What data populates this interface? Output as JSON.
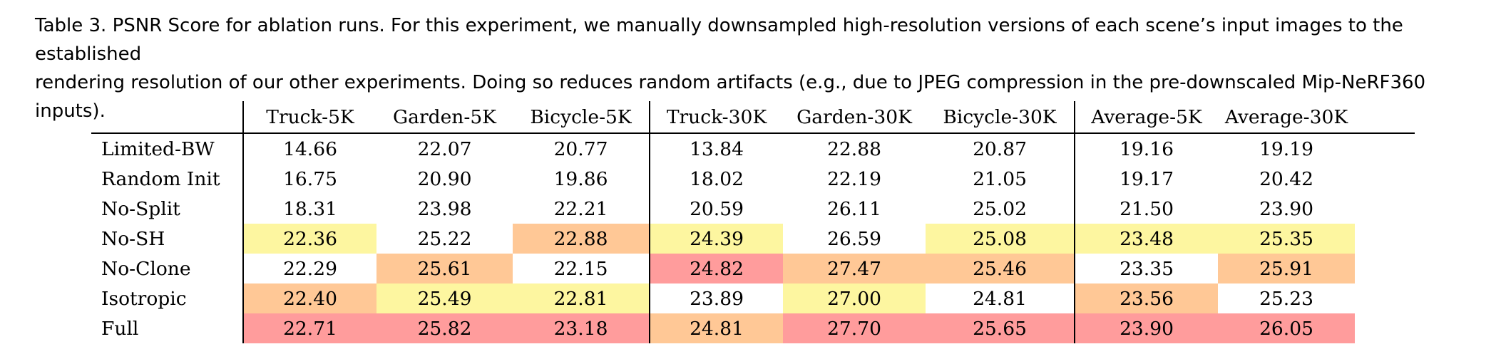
{
  "caption": {
    "line1": "Table 3.  PSNR Score for ablation runs. For this experiment, we manually downsampled high-resolution versions of each scene’s input images to the established",
    "line2": "rendering resolution of our other experiments. Doing so reduces random artifacts (e.g., due to JPEG compression in the pre-downscaled Mip-NeRF360 inputs)."
  },
  "table": {
    "columns": [
      "Truck-5K",
      "Garden-5K",
      "Bicycle-5K",
      "Truck-30K",
      "Garden-30K",
      "Bicycle-30K",
      "Average-5K",
      "Average-30K"
    ],
    "rows": [
      {
        "label": "Limited-BW",
        "cells": [
          {
            "v": "14.66",
            "r": 0
          },
          {
            "v": "22.07",
            "r": 0
          },
          {
            "v": "20.77",
            "r": 0
          },
          {
            "v": "13.84",
            "r": 0
          },
          {
            "v": "22.88",
            "r": 0
          },
          {
            "v": "20.87",
            "r": 0
          },
          {
            "v": "19.16",
            "r": 0
          },
          {
            "v": "19.19",
            "r": 0
          }
        ]
      },
      {
        "label": "Random Init",
        "cells": [
          {
            "v": "16.75",
            "r": 0
          },
          {
            "v": "20.90",
            "r": 0
          },
          {
            "v": "19.86",
            "r": 0
          },
          {
            "v": "18.02",
            "r": 0
          },
          {
            "v": "22.19",
            "r": 0
          },
          {
            "v": "21.05",
            "r": 0
          },
          {
            "v": "19.17",
            "r": 0
          },
          {
            "v": "20.42",
            "r": 0
          }
        ]
      },
      {
        "label": "No-Split",
        "cells": [
          {
            "v": "18.31",
            "r": 0
          },
          {
            "v": "23.98",
            "r": 0
          },
          {
            "v": "22.21",
            "r": 0
          },
          {
            "v": "20.59",
            "r": 0
          },
          {
            "v": "26.11",
            "r": 0
          },
          {
            "v": "25.02",
            "r": 0
          },
          {
            "v": "21.50",
            "r": 0
          },
          {
            "v": "23.90",
            "r": 0
          }
        ]
      },
      {
        "label": "No-SH",
        "cells": [
          {
            "v": "22.36",
            "r": 3
          },
          {
            "v": "25.22",
            "r": 0
          },
          {
            "v": "22.88",
            "r": 2
          },
          {
            "v": "24.39",
            "r": 3
          },
          {
            "v": "26.59",
            "r": 0
          },
          {
            "v": "25.08",
            "r": 3
          },
          {
            "v": "23.48",
            "r": 3
          },
          {
            "v": "25.35",
            "r": 3
          }
        ]
      },
      {
        "label": "No-Clone",
        "cells": [
          {
            "v": "22.29",
            "r": 0
          },
          {
            "v": "25.61",
            "r": 2
          },
          {
            "v": "22.15",
            "r": 0
          },
          {
            "v": "24.82",
            "r": 1
          },
          {
            "v": "27.47",
            "r": 2
          },
          {
            "v": "25.46",
            "r": 2
          },
          {
            "v": "23.35",
            "r": 0
          },
          {
            "v": "25.91",
            "r": 2
          }
        ]
      },
      {
        "label": "Isotropic",
        "cells": [
          {
            "v": "22.40",
            "r": 2
          },
          {
            "v": "25.49",
            "r": 3
          },
          {
            "v": "22.81",
            "r": 3
          },
          {
            "v": "23.89",
            "r": 0
          },
          {
            "v": "27.00",
            "r": 3
          },
          {
            "v": "24.81",
            "r": 0
          },
          {
            "v": "23.56",
            "r": 2
          },
          {
            "v": "25.23",
            "r": 0
          }
        ]
      },
      {
        "label": "Full",
        "cells": [
          {
            "v": "22.71",
            "r": 1
          },
          {
            "v": "25.82",
            "r": 1
          },
          {
            "v": "23.18",
            "r": 1
          },
          {
            "v": "24.81",
            "r": 2
          },
          {
            "v": "27.70",
            "r": 1
          },
          {
            "v": "25.65",
            "r": 1
          },
          {
            "v": "23.90",
            "r": 1
          },
          {
            "v": "26.05",
            "r": 1
          }
        ]
      }
    ]
  },
  "colors": {
    "rank1": "#ff9c9c",
    "rank2": "#ffc896",
    "rank3": "#fdf6a0"
  }
}
